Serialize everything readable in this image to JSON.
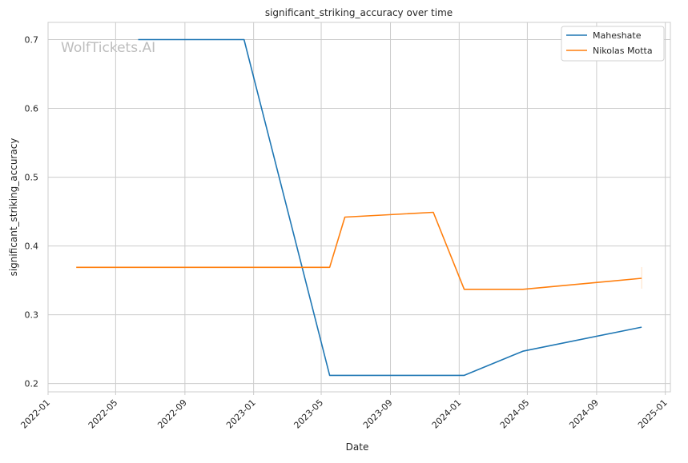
{
  "chart_data": {
    "type": "line",
    "title": "significant_striking_accuracy over time",
    "xlabel": "Date",
    "ylabel": "significant_striking_accuracy",
    "watermark": "WolfTickets.AI",
    "xlim": [
      "2022-01-01",
      "2025-01-10"
    ],
    "ylim": [
      0.188,
      0.725
    ],
    "x_ticks": [
      "2022-01",
      "2022-05",
      "2022-09",
      "2023-01",
      "2023-05",
      "2023-09",
      "2024-01",
      "2024-05",
      "2024-09",
      "2025-01"
    ],
    "y_ticks": [
      0.2,
      0.3,
      0.4,
      0.5,
      0.6,
      0.7
    ],
    "grid": true,
    "legend_position": "top-right",
    "series": [
      {
        "name": "Maheshate",
        "color": "#1f77b4",
        "x": [
          "2022-06-10",
          "2022-12-15",
          "2023-05-16",
          "2024-01-10",
          "2024-04-23",
          "2024-11-20"
        ],
        "y": [
          0.7,
          0.7,
          0.212,
          0.212,
          0.247,
          0.282
        ]
      },
      {
        "name": "Nikolas Motta",
        "color": "#ff7f0e",
        "x": [
          "2022-02-20",
          "2023-05-16",
          "2023-06-12",
          "2023-11-16",
          "2024-01-10",
          "2024-04-23",
          "2024-11-20"
        ],
        "y": [
          0.369,
          0.369,
          0.442,
          0.449,
          0.337,
          0.337,
          0.353
        ]
      }
    ]
  }
}
